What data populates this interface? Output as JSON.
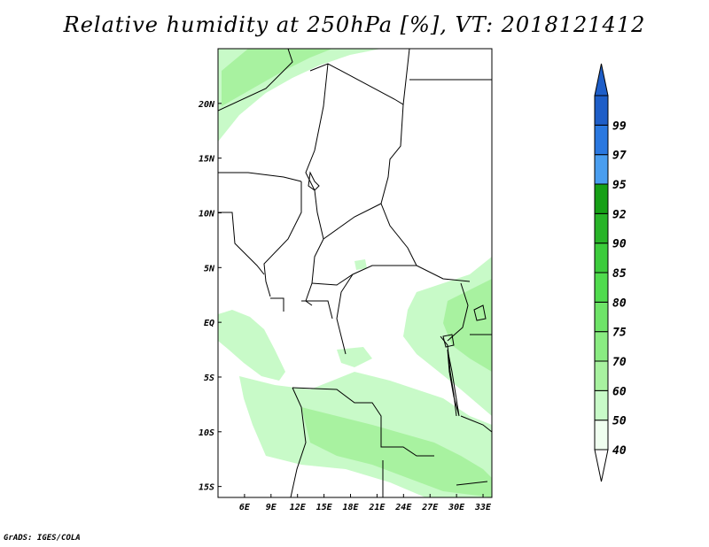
{
  "title": "Relative humidity at 250hPa [%], VT: 2018121412",
  "credit": "GrADS: IGES/COLA",
  "map": {
    "lon_range": [
      3,
      34
    ],
    "lat_range": [
      -16,
      25
    ],
    "lon_ticks": [
      {
        "value": 6,
        "label": "6E"
      },
      {
        "value": 9,
        "label": "9E"
      },
      {
        "value": 12,
        "label": "12E"
      },
      {
        "value": 15,
        "label": "15E"
      },
      {
        "value": 18,
        "label": "18E"
      },
      {
        "value": 21,
        "label": "21E"
      },
      {
        "value": 24,
        "label": "24E"
      },
      {
        "value": 27,
        "label": "27E"
      },
      {
        "value": 30,
        "label": "30E"
      },
      {
        "value": 33,
        "label": "33E"
      }
    ],
    "lat_ticks": [
      {
        "value": 20,
        "label": "20N"
      },
      {
        "value": 15,
        "label": "15N"
      },
      {
        "value": 10,
        "label": "10N"
      },
      {
        "value": 5,
        "label": "5N"
      },
      {
        "value": 0,
        "label": "EQ"
      },
      {
        "value": -5,
        "label": "5S"
      },
      {
        "value": -10,
        "label": "10S"
      },
      {
        "value": -15,
        "label": "15S"
      }
    ]
  },
  "colorbar": {
    "levels": [
      "40",
      "50",
      "60",
      "70",
      "75",
      "80",
      "85",
      "90",
      "92",
      "95",
      "97",
      "99"
    ],
    "colors": [
      "#f0fff0",
      "#c8fac8",
      "#a8f2a0",
      "#8aec82",
      "#6ee468",
      "#50dc4e",
      "#3ccc3c",
      "#28b428",
      "#16a016",
      "#4a9ef0",
      "#2a78e0",
      "#1e5ec8"
    ],
    "lower_arrow_color": "#ffffff",
    "upper_arrow_color": "#1e5ec8"
  },
  "colors": {
    "light_green": "#c8fac8",
    "mid_green": "#a8f2a0",
    "border": "#000000"
  }
}
